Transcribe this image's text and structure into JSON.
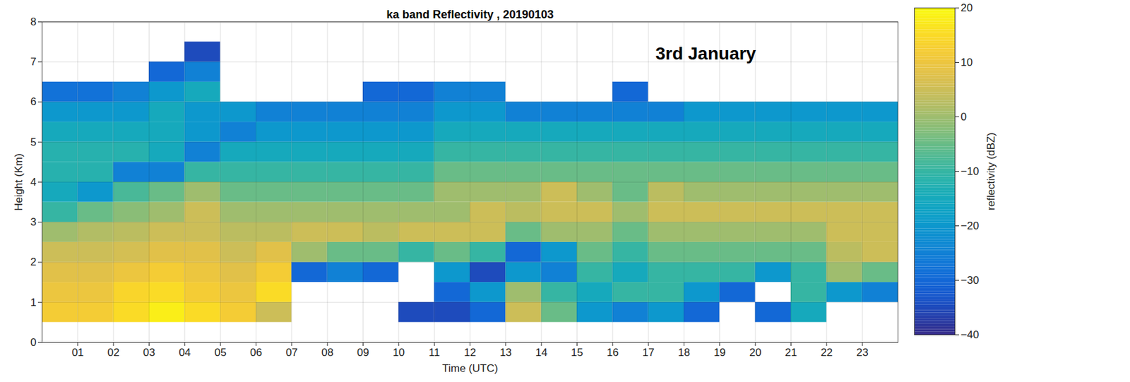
{
  "chart_data": {
    "type": "heatmap",
    "title": "ka band Reflectivity , 20190103",
    "annotation": "3rd January",
    "annotation_x": 17.2,
    "annotation_y": 7.2,
    "x_label": "Time (UTC)",
    "y_label": "Height (Km)",
    "xlim": [
      0,
      24
    ],
    "ylim": [
      0,
      8
    ],
    "xticks": [
      {
        "value": 1,
        "label": "01"
      },
      {
        "value": 2,
        "label": "02"
      },
      {
        "value": 3,
        "label": "03"
      },
      {
        "value": 4,
        "label": "04"
      },
      {
        "value": 5,
        "label": "05"
      },
      {
        "value": 6,
        "label": "06"
      },
      {
        "value": 7,
        "label": "07"
      },
      {
        "value": 8,
        "label": "08"
      },
      {
        "value": 9,
        "label": "09"
      },
      {
        "value": 10,
        "label": "10"
      },
      {
        "value": 11,
        "label": "11"
      },
      {
        "value": 12,
        "label": "12"
      },
      {
        "value": 13,
        "label": "13"
      },
      {
        "value": 14,
        "label": "14"
      },
      {
        "value": 15,
        "label": "15"
      },
      {
        "value": 16,
        "label": "16"
      },
      {
        "value": 17,
        "label": "17"
      },
      {
        "value": 18,
        "label": "18"
      },
      {
        "value": 19,
        "label": "19"
      },
      {
        "value": 20,
        "label": "20"
      },
      {
        "value": 21,
        "label": "21"
      },
      {
        "value": 22,
        "label": "22"
      },
      {
        "value": 23,
        "label": "23"
      }
    ],
    "yticks": [
      0,
      1,
      2,
      3,
      4,
      5,
      6,
      7,
      8
    ],
    "grid": true,
    "x_bins": [
      0,
      1,
      2,
      3,
      4,
      5,
      6,
      7,
      8,
      9,
      10,
      11,
      12,
      13,
      14,
      15,
      16,
      17,
      18,
      19,
      20,
      21,
      22,
      23,
      24
    ],
    "y_bins": [
      0.5,
      1,
      1.5,
      2,
      2.5,
      3,
      3.5,
      4,
      4.5,
      5,
      5.5,
      6,
      6.5,
      7,
      7.5
    ],
    "cells": [
      [
        12,
        10,
        8,
        5,
        0,
        -10,
        -15,
        -12,
        -12,
        -15,
        -20,
        -28,
        null,
        null
      ],
      [
        12,
        10,
        8,
        5,
        2,
        -5,
        -20,
        -12,
        -12,
        -15,
        -20,
        -28,
        null,
        null
      ],
      [
        15,
        14,
        10,
        6,
        3,
        -2,
        -8,
        -25,
        -12,
        -15,
        -20,
        -25,
        null,
        null
      ],
      [
        18,
        15,
        12,
        8,
        5,
        0,
        -5,
        -25,
        -15,
        -15,
        -15,
        -20,
        -30,
        null
      ],
      [
        15,
        12,
        10,
        8,
        5,
        5,
        0,
        -10,
        -25,
        -20,
        -20,
        -15,
        -25,
        -35
      ],
      [
        12,
        10,
        8,
        5,
        3,
        0,
        -5,
        -10,
        -15,
        -25,
        -20,
        null,
        null,
        null
      ],
      [
        5,
        15,
        12,
        8,
        3,
        0,
        -5,
        -10,
        -15,
        -20,
        -25,
        null,
        null,
        null
      ],
      [
        null,
        null,
        -30,
        0,
        5,
        0,
        -5,
        -10,
        -15,
        -20,
        -25,
        null,
        null,
        null
      ],
      [
        null,
        null,
        -25,
        -5,
        5,
        0,
        -5,
        -10,
        -15,
        -20,
        -25,
        null,
        null,
        null
      ],
      [
        null,
        null,
        -30,
        -5,
        3,
        0,
        -5,
        -10,
        -15,
        -20,
        -25,
        -30,
        null,
        null
      ],
      [
        -35,
        null,
        null,
        -10,
        5,
        0,
        -5,
        -10,
        -15,
        -20,
        -25,
        -30,
        null,
        null
      ],
      [
        -35,
        -30,
        -20,
        -5,
        5,
        0,
        0,
        -5,
        -10,
        -15,
        -20,
        -25,
        null,
        null
      ],
      [
        -30,
        -20,
        -35,
        -10,
        5,
        5,
        0,
        -5,
        -10,
        -15,
        -20,
        -25,
        null,
        null
      ],
      [
        5,
        0,
        -20,
        -30,
        -5,
        3,
        0,
        -5,
        -10,
        -15,
        -25,
        null,
        null,
        null
      ],
      [
        -5,
        -10,
        -25,
        -20,
        0,
        5,
        5,
        -5,
        -10,
        -15,
        -25,
        null,
        null,
        null
      ],
      [
        -20,
        -15,
        -10,
        -5,
        0,
        5,
        0,
        -5,
        -10,
        -15,
        -25,
        null,
        null,
        null
      ],
      [
        -25,
        -10,
        -15,
        -10,
        -5,
        0,
        -5,
        -5,
        -10,
        -15,
        -25,
        -30,
        null,
        null
      ],
      [
        -20,
        -10,
        -10,
        -5,
        0,
        5,
        3,
        -5,
        -10,
        -15,
        -25,
        null,
        null,
        null
      ],
      [
        -30,
        -20,
        -10,
        -5,
        0,
        5,
        0,
        -5,
        -10,
        -15,
        -20,
        null,
        null,
        null
      ],
      [
        null,
        -30,
        -10,
        -5,
        0,
        5,
        0,
        -5,
        -10,
        -15,
        -20,
        null,
        null,
        null
      ],
      [
        -30,
        null,
        -20,
        -5,
        0,
        5,
        0,
        -5,
        -10,
        -15,
        -20,
        null,
        null,
        null
      ],
      [
        -15,
        -10,
        -10,
        -5,
        0,
        5,
        0,
        -5,
        -10,
        -15,
        -20,
        null,
        null,
        null
      ],
      [
        null,
        -20,
        0,
        3,
        5,
        5,
        0,
        -5,
        -10,
        -15,
        -20,
        null,
        null,
        null
      ],
      [
        null,
        -25,
        -5,
        5,
        5,
        5,
        0,
        -5,
        -10,
        -15,
        -20,
        null,
        null,
        null
      ]
    ],
    "colorbar": {
      "label": "reflectivity (dBZ)",
      "range": [
        -40,
        20
      ],
      "ticks": [
        -40,
        -30,
        -20,
        -10,
        0,
        10,
        20
      ]
    }
  }
}
